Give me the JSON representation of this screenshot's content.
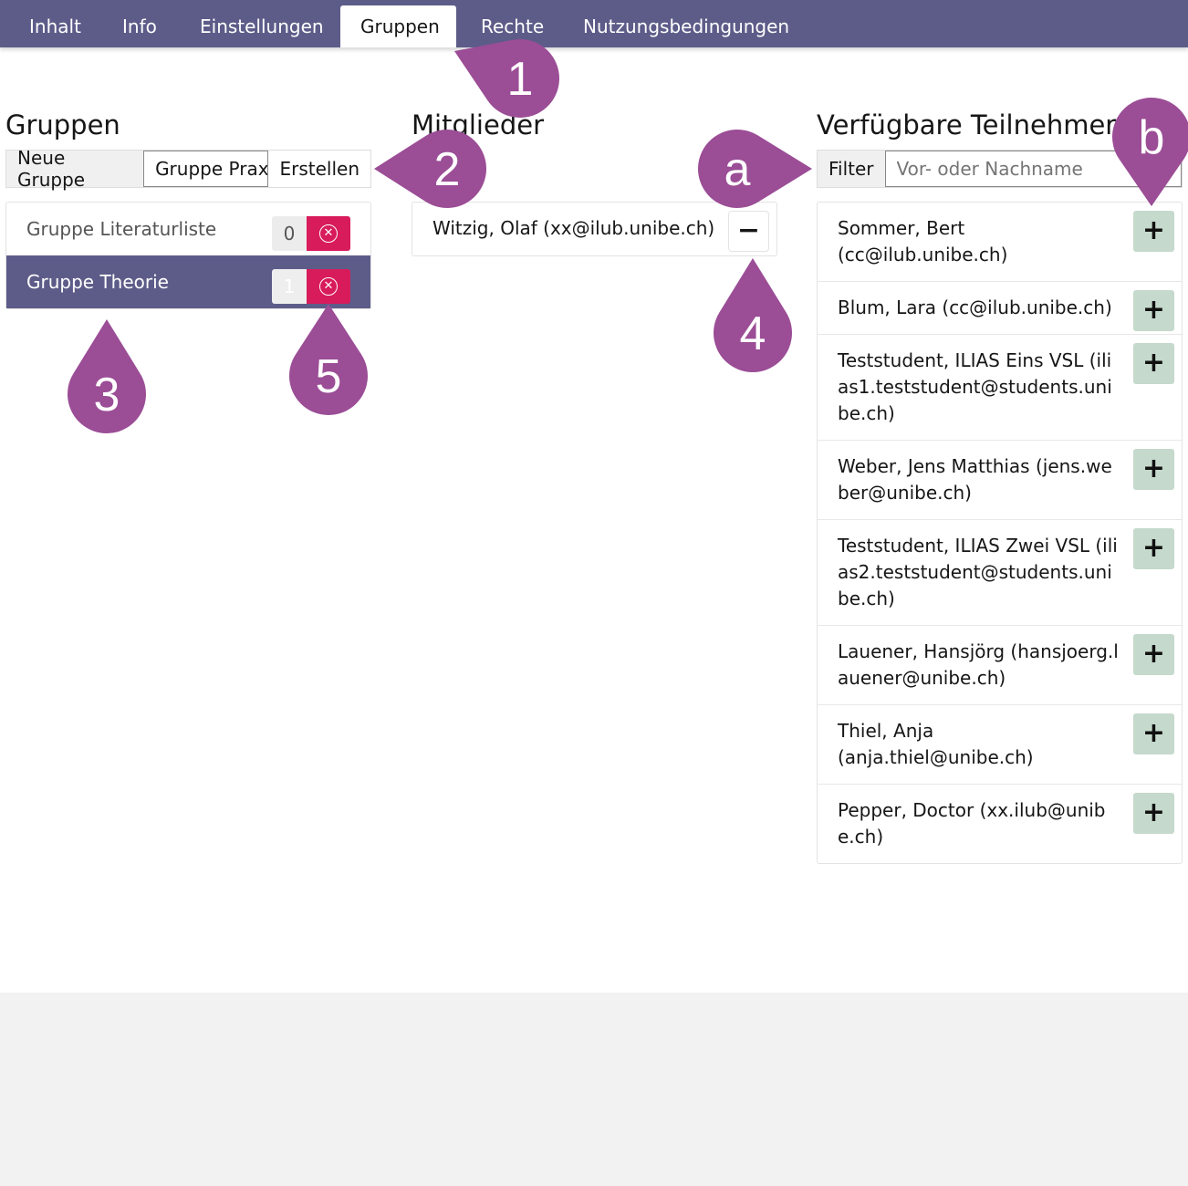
{
  "nav": {
    "tabs": [
      {
        "label": "Inhalt"
      },
      {
        "label": "Info"
      },
      {
        "label": "Einstellungen"
      },
      {
        "label": "Gruppen",
        "active": true
      },
      {
        "label": "Rechte"
      },
      {
        "label": "Nutzungsbedingungen"
      }
    ]
  },
  "groups": {
    "title": "Gruppen",
    "new_label": "Neue Gruppe",
    "new_value": "Gruppe Prax",
    "create_label": "Erstellen",
    "items": [
      {
        "name": "Gruppe Literaturliste",
        "count": "0"
      },
      {
        "name": "Gruppe Theorie",
        "count": "1",
        "active": true
      }
    ]
  },
  "members": {
    "title": "Mitglieder",
    "items": [
      {
        "name": "Witzig, Olaf (xx@ilub.unibe.ch)"
      }
    ]
  },
  "available": {
    "title": "Verfügbare Teilnehmer",
    "filter_label": "Filter",
    "filter_placeholder": "Vor- oder Nachname",
    "items": [
      {
        "name": "Sommer, Bert (cc@ilub.unibe.ch)"
      },
      {
        "name": "Blum, Lara (cc@ilub.unibe.ch)"
      },
      {
        "name": "Teststudent, ILIAS Eins VSL (ilias1.teststudent@students.unibe.ch)"
      },
      {
        "name": "Weber, Jens Matthias (jens.weber@unibe.ch)"
      },
      {
        "name": "Teststudent, ILIAS Zwei VSL (ilias2.teststudent@students.unibe.ch)"
      },
      {
        "name": "Lauener, Hansjörg (hansjoerg.lauener@unibe.ch)"
      },
      {
        "name": "Thiel, Anja (anja.thiel@unibe.ch)"
      },
      {
        "name": "Pepper, Doctor (xx.ilub@unibe.ch)"
      }
    ]
  },
  "callouts": [
    "1",
    "2",
    "a",
    "b",
    "4",
    "3",
    "5"
  ],
  "colors": {
    "nav": "#5d5c89",
    "callout": "#9b4d96",
    "delete": "#d81b5b",
    "add": "#c5d9cc"
  }
}
